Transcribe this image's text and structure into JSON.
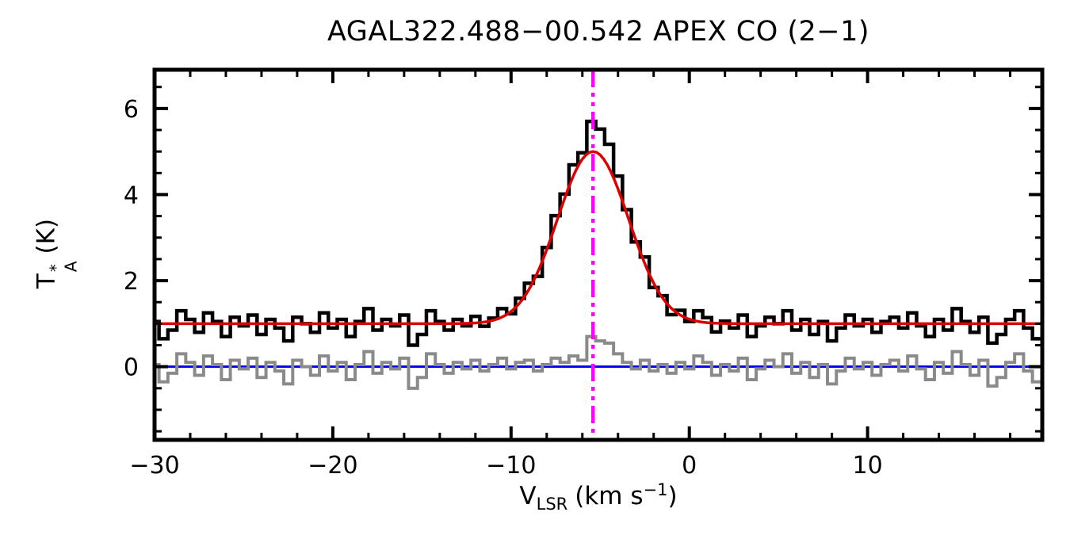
{
  "chart_data": {
    "type": "line",
    "title": "AGAL322.488−00.542  APEX CO (2−1)",
    "xlabel": "V_LSR (km s^-1)",
    "ylabel": "T*_A (K)",
    "xlim": [
      -30,
      19.8
    ],
    "ylim": [
      -1.7,
      6.9
    ],
    "x_major_ticks": [
      -30,
      -20,
      -10,
      0,
      10
    ],
    "x_tick_labels": [
      "−30",
      "−20",
      "−10",
      "0",
      "10"
    ],
    "x_minor_step": 2,
    "y_major_ticks": [
      0,
      2,
      4,
      6
    ],
    "y_tick_labels": [
      "0",
      "2",
      "4",
      "6"
    ],
    "y_minor_step": 0.5,
    "grid": false,
    "legend": "none",
    "x_start": -30,
    "dx": 0.5,
    "series": [
      {
        "name": "zero-baseline",
        "type": "hline",
        "y": 0,
        "color": "#0000ee",
        "line_width": 3
      },
      {
        "name": "residual-spectrum",
        "type": "histogram",
        "color": "#8a8a8a",
        "line_width": 4,
        "values": [
          0.05,
          -0.35,
          -0.15,
          0.3,
          0.1,
          -0.2,
          0.25,
          0.05,
          -0.3,
          0.15,
          -0.05,
          0.2,
          -0.25,
          0.1,
          -0.1,
          -0.4,
          0.15,
          0.0,
          -0.2,
          0.25,
          -0.1,
          0.1,
          -0.3,
          0.05,
          0.35,
          -0.15,
          0.1,
          -0.05,
          0.2,
          -0.5,
          -0.25,
          0.3,
          0.05,
          -0.15,
          0.1,
          -0.05,
          0.15,
          -0.1,
          0.05,
          0.2,
          -0.05,
          0.1,
          0.15,
          -0.1,
          0.05,
          0.2,
          0.1,
          0.25,
          0.15,
          0.7,
          0.6,
          0.55,
          0.3,
          0.1,
          -0.05,
          0.15,
          -0.1,
          0.05,
          -0.15,
          0.1,
          -0.05,
          0.25,
          0.1,
          -0.2,
          0.05,
          -0.1,
          0.2,
          -0.3,
          -0.05,
          0.15,
          0.0,
          0.3,
          -0.15,
          0.1,
          -0.25,
          0.05,
          -0.4,
          -0.1,
          0.2,
          -0.05,
          0.1,
          -0.2,
          0.05,
          0.15,
          -0.1,
          0.25,
          -0.05,
          -0.3,
          0.1,
          -0.15,
          0.35,
          0.05,
          -0.2,
          0.15,
          -0.45,
          -0.25,
          0.1,
          0.3,
          -0.1,
          -0.35
        ]
      },
      {
        "name": "observed-spectrum",
        "type": "histogram",
        "color": "#000000",
        "line_width": 4.5,
        "values": [
          1.05,
          0.65,
          0.85,
          1.3,
          1.1,
          0.8,
          1.25,
          1.05,
          0.7,
          1.15,
          0.95,
          1.2,
          0.75,
          1.1,
          0.9,
          0.6,
          1.15,
          1.0,
          0.8,
          1.25,
          0.9,
          1.1,
          0.7,
          1.05,
          1.35,
          0.85,
          1.1,
          0.95,
          1.2,
          0.5,
          0.75,
          1.3,
          1.05,
          0.85,
          1.1,
          0.95,
          1.17,
          0.94,
          1.13,
          1.35,
          1.23,
          1.59,
          1.94,
          2.1,
          2.77,
          3.51,
          4.01,
          4.69,
          4.97,
          5.7,
          5.52,
          5.17,
          4.43,
          3.65,
          2.9,
          2.55,
          1.84,
          1.65,
          1.21,
          1.31,
          1.05,
          1.3,
          1.14,
          0.81,
          1.06,
          0.9,
          1.2,
          0.7,
          0.95,
          1.15,
          1.0,
          1.3,
          0.85,
          1.1,
          0.75,
          1.05,
          0.6,
          0.9,
          1.2,
          0.95,
          1.1,
          0.8,
          1.05,
          1.15,
          0.9,
          1.25,
          0.95,
          0.7,
          1.1,
          0.85,
          1.35,
          1.05,
          0.8,
          1.15,
          0.55,
          0.75,
          1.1,
          1.3,
          0.9,
          0.65
        ]
      },
      {
        "name": "gaussian-fit",
        "type": "gaussian",
        "color": "#dd0000",
        "line_width": 3.5,
        "baseline": 1.0,
        "amplitude": 4.0,
        "center": -5.4,
        "sigma": 2.0
      },
      {
        "name": "vlsr-marker",
        "type": "vline",
        "x": -5.4,
        "color": "#ff00ff",
        "line_width": 4.5,
        "dash": "22 7 5 7 5 7"
      }
    ]
  },
  "labels": {
    "ylabel_main": "T",
    "ylabel_sup": "*",
    "ylabel_sub": "A",
    "ylabel_unit": "(K)",
    "xlabel_pre": "V",
    "xlabel_sub": "LSR",
    "xlabel_mid": "(km s",
    "xlabel_sup": "−1",
    "xlabel_post": ")"
  }
}
